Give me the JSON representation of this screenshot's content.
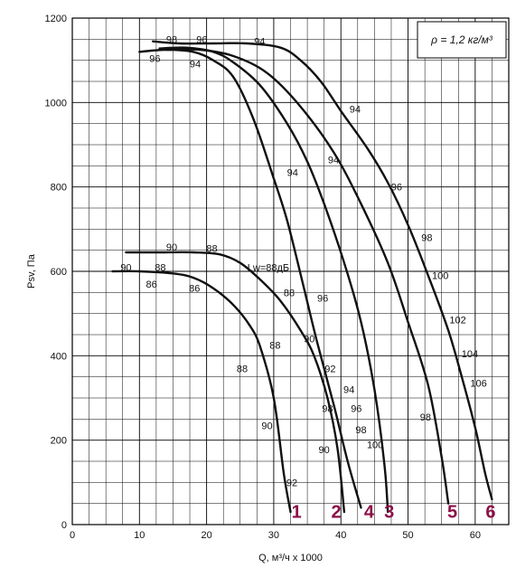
{
  "chart_data": {
    "type": "line",
    "xlabel": "Q, м³/ч x 1000",
    "ylabel": "Psv, Па",
    "xlim": [
      0,
      65
    ],
    "ylim": [
      0,
      1200
    ],
    "grid": true,
    "x_ticks": [
      0,
      10,
      20,
      30,
      40,
      50,
      60
    ],
    "y_ticks": [
      0,
      200,
      400,
      600,
      800,
      1000,
      1200
    ],
    "legend": {
      "text": "ρ = 1,2 кг/м³",
      "position": "top-right"
    },
    "series": [
      {
        "name": "1",
        "points": [
          [
            6,
            600
          ],
          [
            10,
            600
          ],
          [
            15,
            595
          ],
          [
            18,
            585
          ],
          [
            21,
            560
          ],
          [
            24,
            520
          ],
          [
            26.5,
            470
          ],
          [
            28,
            420
          ],
          [
            30,
            300
          ],
          [
            31.5,
            120
          ],
          [
            32.5,
            30
          ]
        ]
      },
      {
        "name": "2",
        "points": [
          [
            8,
            645
          ],
          [
            13,
            645
          ],
          [
            18,
            645
          ],
          [
            22,
            640
          ],
          [
            25,
            620
          ],
          [
            28,
            580
          ],
          [
            31,
            530
          ],
          [
            34,
            460
          ],
          [
            36,
            400
          ],
          [
            38,
            300
          ],
          [
            39.5,
            180
          ],
          [
            40.5,
            30
          ]
        ]
      },
      {
        "name": "3",
        "points": [
          [
            10,
            1120
          ],
          [
            14,
            1125
          ],
          [
            18,
            1120
          ],
          [
            21,
            1100
          ],
          [
            24,
            1060
          ],
          [
            27,
            960
          ],
          [
            30,
            820
          ],
          [
            32,
            720
          ],
          [
            34.5,
            560
          ],
          [
            36.5,
            430
          ],
          [
            39,
            280
          ],
          [
            41,
            150
          ],
          [
            43,
            40
          ]
        ]
      },
      {
        "name": "4",
        "points": [
          [
            13,
            1128
          ],
          [
            17,
            1130
          ],
          [
            21,
            1120
          ],
          [
            24,
            1095
          ],
          [
            28,
            1040
          ],
          [
            32,
            950
          ],
          [
            35,
            860
          ],
          [
            37.5,
            760
          ],
          [
            40.5,
            620
          ],
          [
            43,
            480
          ],
          [
            45,
            320
          ],
          [
            46.5,
            140
          ],
          [
            47,
            30
          ]
        ]
      },
      {
        "name": "5",
        "points": [
          [
            14,
            1125
          ],
          [
            19,
            1125
          ],
          [
            24,
            1110
          ],
          [
            29,
            1070
          ],
          [
            34,
            990
          ],
          [
            39,
            880
          ],
          [
            43,
            760
          ],
          [
            47,
            620
          ],
          [
            50,
            480
          ],
          [
            53,
            330
          ],
          [
            55,
            160
          ],
          [
            56,
            50
          ]
        ]
      },
      {
        "name": "6",
        "points": [
          [
            12,
            1145
          ],
          [
            16,
            1140
          ],
          [
            21,
            1140
          ],
          [
            26,
            1140
          ],
          [
            31,
            1130
          ],
          [
            34,
            1100
          ],
          [
            37,
            1050
          ],
          [
            40,
            980
          ],
          [
            44,
            890
          ],
          [
            47,
            810
          ],
          [
            50,
            710
          ],
          [
            53,
            590
          ],
          [
            56,
            460
          ],
          [
            58,
            350
          ],
          [
            60,
            230
          ],
          [
            61.5,
            120
          ],
          [
            62.5,
            60
          ]
        ]
      }
    ],
    "curve_labels": [
      {
        "text": "1",
        "x": 33.4,
        "y": 20
      },
      {
        "text": "2",
        "x": 39.3,
        "y": 20
      },
      {
        "text": "4",
        "x": 44.2,
        "y": 20
      },
      {
        "text": "3",
        "x": 47.2,
        "y": 20
      },
      {
        "text": "5",
        "x": 56.6,
        "y": 20
      },
      {
        "text": "6",
        "x": 62.3,
        "y": 20
      }
    ],
    "annotations": [
      {
        "text": "98",
        "x": 14.8,
        "y": 1150
      },
      {
        "text": "96",
        "x": 19.3,
        "y": 1150
      },
      {
        "text": "94",
        "x": 27.9,
        "y": 1145
      },
      {
        "text": "96",
        "x": 12.3,
        "y": 1105
      },
      {
        "text": "94",
        "x": 18.3,
        "y": 1092
      },
      {
        "text": "94",
        "x": 42.1,
        "y": 985
      },
      {
        "text": "94",
        "x": 38.9,
        "y": 865
      },
      {
        "text": "94",
        "x": 32.8,
        "y": 835
      },
      {
        "text": "96",
        "x": 48.3,
        "y": 800
      },
      {
        "text": "98",
        "x": 52.8,
        "y": 680
      },
      {
        "text": "100",
        "x": 54.8,
        "y": 590
      },
      {
        "text": "102",
        "x": 57.4,
        "y": 485
      },
      {
        "text": "104",
        "x": 59.2,
        "y": 405
      },
      {
        "text": "106",
        "x": 60.5,
        "y": 335
      },
      {
        "text": "90",
        "x": 14.8,
        "y": 658
      },
      {
        "text": "88",
        "x": 20.8,
        "y": 655
      },
      {
        "text": "Lw=88дБ",
        "x": 29.2,
        "y": 610
      },
      {
        "text": "90",
        "x": 8.0,
        "y": 610
      },
      {
        "text": "88",
        "x": 13.1,
        "y": 610
      },
      {
        "text": "86",
        "x": 11.8,
        "y": 570
      },
      {
        "text": "86",
        "x": 18.2,
        "y": 560
      },
      {
        "text": "88",
        "x": 32.3,
        "y": 550
      },
      {
        "text": "96",
        "x": 37.3,
        "y": 537
      },
      {
        "text": "90",
        "x": 35.3,
        "y": 440
      },
      {
        "text": "88",
        "x": 30.2,
        "y": 425
      },
      {
        "text": "88",
        "x": 25.3,
        "y": 370
      },
      {
        "text": "92",
        "x": 38.4,
        "y": 370
      },
      {
        "text": "94",
        "x": 41.2,
        "y": 320
      },
      {
        "text": "98",
        "x": 38.0,
        "y": 275
      },
      {
        "text": "96",
        "x": 42.3,
        "y": 275
      },
      {
        "text": "98",
        "x": 43.0,
        "y": 225
      },
      {
        "text": "100",
        "x": 45.1,
        "y": 190
      },
      {
        "text": "98",
        "x": 52.6,
        "y": 255
      },
      {
        "text": "90",
        "x": 29.0,
        "y": 235
      },
      {
        "text": "90",
        "x": 37.5,
        "y": 178
      },
      {
        "text": "92",
        "x": 32.7,
        "y": 100
      }
    ]
  }
}
